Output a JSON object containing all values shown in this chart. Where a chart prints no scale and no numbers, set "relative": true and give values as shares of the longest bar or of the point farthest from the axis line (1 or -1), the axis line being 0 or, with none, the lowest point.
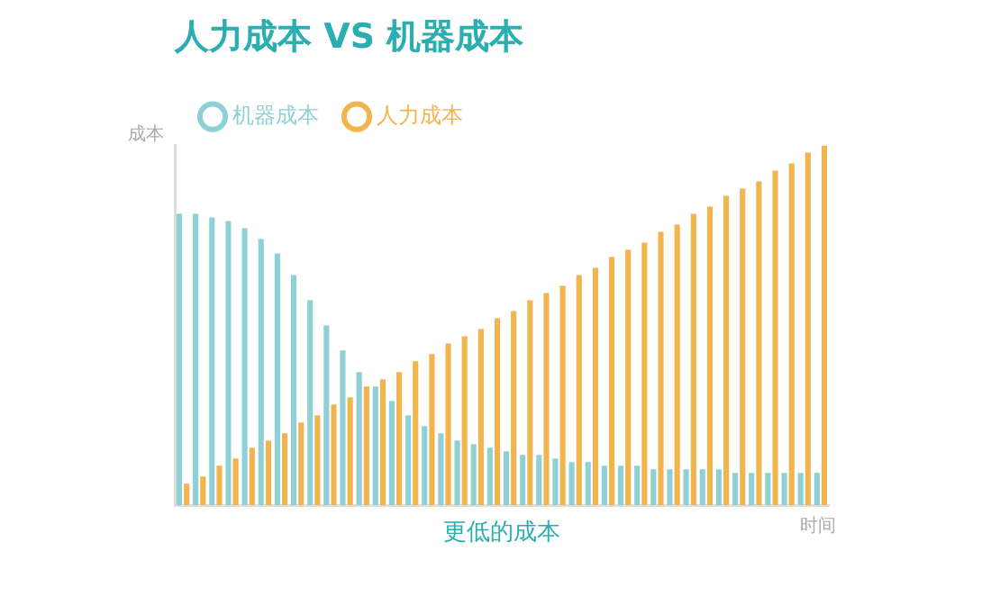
{
  "chart_data": {
    "type": "bar",
    "title": "人力成本 VS 机器成本",
    "xlabel": "时间",
    "ylabel": "成本",
    "annotations": [
      "更低的成本"
    ],
    "relative": true,
    "legend": "top left",
    "grid": false,
    "categories": [
      null,
      null,
      null,
      null,
      null,
      null,
      null,
      null,
      null,
      null,
      null,
      null,
      null,
      null,
      null,
      null,
      null,
      null,
      null,
      null,
      null,
      null,
      null,
      null,
      null,
      null,
      null,
      null,
      null,
      null,
      null,
      null,
      null,
      null,
      null,
      null,
      null,
      null,
      null,
      null
    ],
    "series": [
      {
        "name": "机器成本",
        "color": "#8fd0d6",
        "values": [
          0.81,
          0.81,
          0.8,
          0.79,
          0.77,
          0.74,
          0.7,
          0.64,
          0.57,
          0.5,
          0.43,
          0.37,
          0.33,
          0.29,
          0.25,
          0.22,
          0.2,
          0.18,
          0.17,
          0.16,
          0.15,
          0.14,
          0.14,
          0.13,
          0.12,
          0.12,
          0.11,
          0.11,
          0.11,
          0.1,
          0.1,
          0.1,
          0.1,
          0.1,
          0.09,
          0.09,
          0.09,
          0.09,
          0.09,
          0.09
        ]
      },
      {
        "name": "人力成本",
        "color": "#f2b44c",
        "values": [
          0.06,
          0.08,
          0.11,
          0.13,
          0.16,
          0.18,
          0.2,
          0.23,
          0.25,
          0.28,
          0.3,
          0.33,
          0.35,
          0.37,
          0.4,
          0.42,
          0.45,
          0.47,
          0.49,
          0.52,
          0.54,
          0.57,
          0.59,
          0.61,
          0.64,
          0.66,
          0.69,
          0.71,
          0.73,
          0.76,
          0.78,
          0.81,
          0.83,
          0.86,
          0.88,
          0.9,
          0.93,
          0.95,
          0.98,
          1
        ]
      }
    ]
  }
}
